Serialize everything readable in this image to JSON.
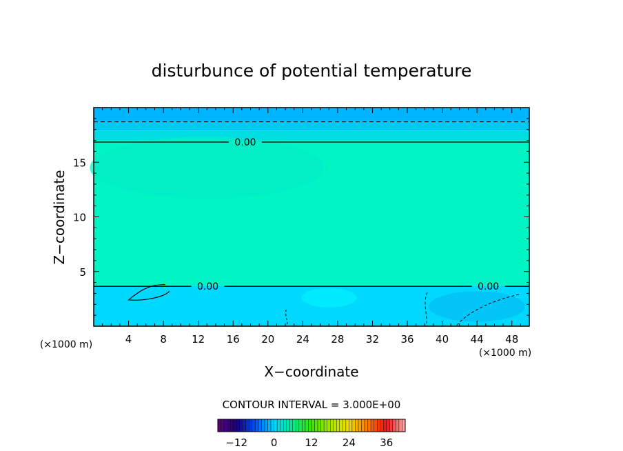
{
  "chart_data": {
    "type": "heatmap",
    "title": "disturbunce of potential temperature",
    "xlabel": "X−coordinate",
    "ylabel": "Z−coordinate",
    "x_unit_left": "(×1000 m)",
    "x_unit_right": "(×1000 m)",
    "xlim": [
      0,
      50
    ],
    "ylim": [
      0,
      20
    ],
    "x_ticks": [
      4,
      8,
      12,
      16,
      20,
      24,
      28,
      32,
      36,
      40,
      44,
      48
    ],
    "y_ticks": [
      5,
      10,
      15
    ],
    "bands": [
      {
        "z0": 18.8,
        "z1": 20.0,
        "color": "#00b4ff"
      },
      {
        "z0": 17.9,
        "z1": 18.8,
        "color": "#00c8f0"
      },
      {
        "z0": 17.0,
        "z1": 17.9,
        "color": "#00dce4"
      },
      {
        "z0": 3.7,
        "z1": 17.0,
        "color": "#00f5c4"
      },
      {
        "z0": 0.0,
        "z1": 3.7,
        "color": "#00d8ff"
      }
    ],
    "contours": [
      {
        "level": "0.00",
        "z": 16.85,
        "label_x": 17.4,
        "style": "solid"
      },
      {
        "level": "0.00",
        "z": 3.65,
        "label_x": 13.1,
        "style": "solid"
      },
      {
        "level": "0.00",
        "z": 3.65,
        "label_x": 45.3,
        "style": "solid"
      },
      {
        "level": "-3",
        "z": 18.7,
        "label_x": null,
        "style": "dashed"
      }
    ],
    "contour_interval_text": "CONTOUR INTERVAL = 3.000E+00",
    "colorbar": {
      "min": -18,
      "max": 42,
      "tick_values": [
        -12,
        0,
        12,
        24,
        36
      ],
      "tick_labels": [
        "−12",
        "0",
        "12",
        "24",
        "36"
      ]
    }
  }
}
